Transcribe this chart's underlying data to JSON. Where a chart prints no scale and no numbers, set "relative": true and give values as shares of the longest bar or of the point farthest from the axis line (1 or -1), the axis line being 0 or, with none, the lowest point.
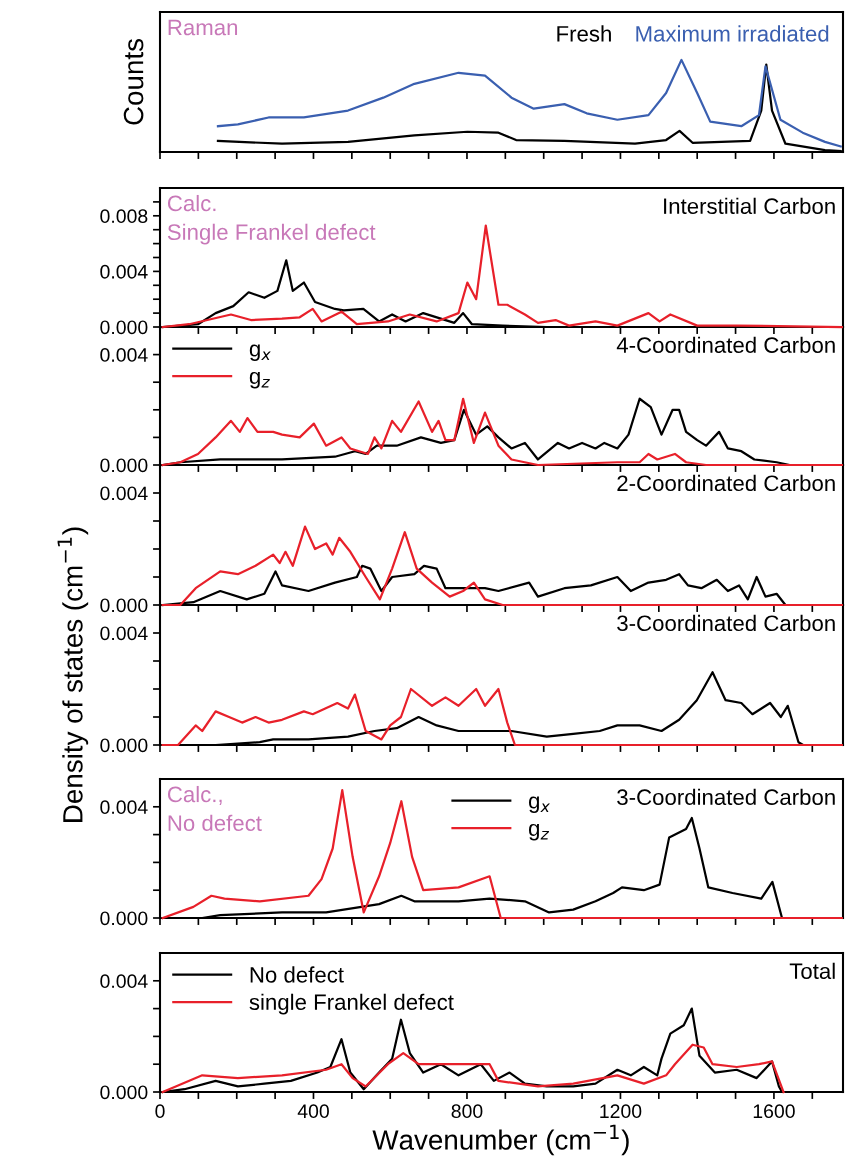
{
  "chart_data": [
    {
      "type": "line",
      "ylabel": "Counts",
      "annotations": [
        "Raman"
      ],
      "relative": true,
      "legend": "top right",
      "tick_labels": false,
      "xlim": [
        0,
        1780
      ],
      "xticks": [
        0,
        {
          "value": 100,
          "label": null
        },
        {
          "value": 200,
          "label": null
        },
        {
          "value": 300,
          "label": null
        },
        400,
        {
          "value": 500,
          "label": null
        },
        {
          "value": 600,
          "label": null
        },
        {
          "value": 700,
          "label": null
        },
        800,
        {
          "value": 900,
          "label": null
        },
        {
          "value": 1000,
          "label": null
        },
        {
          "value": 1100,
          "label": null
        },
        1200,
        {
          "value": 1300,
          "label": null
        },
        {
          "value": 1400,
          "label": null
        },
        {
          "value": 1500,
          "label": null
        },
        1600,
        {
          "value": 1700,
          "label": null
        }
      ],
      "series": [
        {
          "name": "Fresh",
          "color": "#000000",
          "x": [
            151,
            318,
            490,
            663,
            801,
            882,
            928,
            1054,
            1238,
            1319,
            1354,
            1388,
            1538,
            1567,
            1580,
            1595,
            1630,
            1733,
            1774
          ],
          "values": [
            0.12,
            0.09,
            0.11,
            0.18,
            0.22,
            0.21,
            0.13,
            0.12,
            0.09,
            0.13,
            0.23,
            0.1,
            0.12,
            0.45,
            0.95,
            0.45,
            0.09,
            0.02,
            0.01
          ]
        },
        {
          "name": "Maximum irradiated",
          "color": "#3a5fb0",
          "x": [
            151,
            203,
            283,
            375,
            490,
            582,
            663,
            778,
            847,
            916,
            974,
            1054,
            1112,
            1192,
            1273,
            1319,
            1359,
            1400,
            1434,
            1515,
            1561,
            1578,
            1617,
            1675,
            1733,
            1774
          ],
          "values": [
            0.28,
            0.3,
            0.375,
            0.375,
            0.45,
            0.59,
            0.74,
            0.86,
            0.83,
            0.59,
            0.47,
            0.52,
            0.42,
            0.35,
            0.4,
            0.64,
            1.0,
            0.64,
            0.33,
            0.28,
            0.4,
            0.93,
            0.35,
            0.21,
            0.11,
            0.06
          ]
        }
      ]
    },
    {
      "type": "line",
      "title": "Interstitial Carbon",
      "annotations": [
        "Calc.\nSingle Frankel defect"
      ],
      "tick_labels": "y",
      "xlim": [
        0,
        1780
      ],
      "xticks": [
        0,
        {
          "value": 100,
          "label": null
        },
        {
          "value": 200,
          "label": null
        },
        {
          "value": 300,
          "label": null
        },
        400,
        {
          "value": 500,
          "label": null
        },
        {
          "value": 600,
          "label": null
        },
        {
          "value": 700,
          "label": null
        },
        800,
        {
          "value": 900,
          "label": null
        },
        {
          "value": 1000,
          "label": null
        },
        {
          "value": 1100,
          "label": null
        },
        1200,
        {
          "value": 1300,
          "label": null
        },
        {
          "value": 1400,
          "label": null
        },
        {
          "value": 1500,
          "label": null
        },
        1600,
        {
          "value": 1700,
          "label": null
        }
      ],
      "ylim": [
        0,
        0.01
      ],
      "yticks": [
        {
          "value": 0,
          "label": "0.000"
        },
        {
          "value": 0.001,
          "label": null
        },
        {
          "value": 0.002,
          "label": null
        },
        {
          "value": 0.003,
          "label": null
        },
        {
          "value": 0.004,
          "label": "0.004"
        },
        {
          "value": 0.005,
          "label": null
        },
        {
          "value": 0.006,
          "label": null
        },
        {
          "value": 0.007,
          "label": null
        },
        {
          "value": 0.008,
          "label": "0.008"
        },
        {
          "value": 0.009,
          "label": null
        }
      ],
      "series": [
        {
          "color": "#000000",
          "x": [
            7,
            99,
            145,
            191,
            231,
            272,
            306,
            329,
            346,
            375,
            404,
            456,
            479,
            530,
            571,
            605,
            640,
            686,
            767,
            790,
            813,
            893,
            1008,
            1768
          ],
          "values": [
            0,
            0.0002,
            0.001,
            0.0015,
            0.0025,
            0.0021,
            0.0026,
            0.0048,
            0.0026,
            0.0032,
            0.0018,
            0.0013,
            0.0012,
            0.0013,
            0.0004,
            0.0009,
            0.0004,
            0.001,
            0.0003,
            0.001,
            0.0002,
            0.0001,
            0,
            0
          ]
        },
        {
          "color": "#e8202a",
          "x": [
            7,
            76,
            185,
            237,
            318,
            364,
            398,
            421,
            473,
            513,
            594,
            651,
            721,
            778,
            801,
            824,
            849,
            882,
            905,
            951,
            985,
            1031,
            1066,
            1135,
            1192,
            1273,
            1302,
            1330,
            1400,
            1503,
            1777
          ],
          "values": [
            0,
            0.0002,
            0.0009,
            0.0005,
            0.0006,
            0.0007,
            0.0013,
            0.0004,
            0.0011,
            0.0002,
            0.0004,
            0.0009,
            0.0004,
            0.001,
            0.0032,
            0.002,
            0.0073,
            0.0016,
            0.0016,
            0.0009,
            0.0003,
            0.0005,
            0.0001,
            0.0004,
            0.0001,
            0.001,
            0.0004,
            0.0009,
            0.0001,
            0.0001,
            0
          ]
        }
      ]
    },
    {
      "type": "line",
      "title": "4-Coordinated Carbon",
      "legend": "top left",
      "tick_labels": "y",
      "xlim": [
        0,
        1780
      ],
      "xticks": [
        0,
        {
          "value": 100,
          "label": null
        },
        {
          "value": 200,
          "label": null
        },
        {
          "value": 300,
          "label": null
        },
        400,
        {
          "value": 500,
          "label": null
        },
        {
          "value": 600,
          "label": null
        },
        {
          "value": 700,
          "label": null
        },
        800,
        {
          "value": 900,
          "label": null
        },
        {
          "value": 1000,
          "label": null
        },
        {
          "value": 1100,
          "label": null
        },
        1200,
        {
          "value": 1300,
          "label": null
        },
        {
          "value": 1400,
          "label": null
        },
        {
          "value": 1500,
          "label": null
        },
        1600,
        {
          "value": 1700,
          "label": null
        }
      ],
      "ylim": [
        0,
        0.005
      ],
      "yticks": [
        {
          "value": 0,
          "label": "0.000"
        },
        {
          "value": 0.001,
          "label": null
        },
        {
          "value": 0.002,
          "label": null
        },
        {
          "value": 0.003,
          "label": null
        },
        {
          "value": 0.004,
          "label": "0.004"
        }
      ],
      "series": [
        {
          "name": "g$_{x}$",
          "color": "#000000",
          "x": [
            7,
            53,
            157,
            203,
            318,
            456,
            508,
            536,
            565,
            617,
            680,
            732,
            767,
            792,
            824,
            853,
            882,
            916,
            951,
            985,
            1037,
            1066,
            1100,
            1135,
            1158,
            1192,
            1221,
            1250,
            1279,
            1307,
            1336,
            1353,
            1371,
            1400,
            1423,
            1457,
            1480,
            1515,
            1549,
            1607,
            1641,
            1777
          ],
          "values": [
            0,
            0.0001,
            0.0002,
            0.0002,
            0.0002,
            0.0003,
            0.0005,
            0.0004,
            0.0007,
            0.0007,
            0.001,
            0.0008,
            0.0009,
            0.002,
            0.0011,
            0.0014,
            0.001,
            0.0006,
            0.0008,
            0.0002,
            0.0008,
            0.0006,
            0.0008,
            0.0006,
            0.0008,
            0.0006,
            0.0011,
            0.0024,
            0.0021,
            0.0011,
            0.002,
            0.002,
            0.0012,
            0.0009,
            0.0007,
            0.0012,
            0.0006,
            0.0005,
            0.0002,
            0.0001,
            0,
            0
          ]
        },
        {
          "name": "g$_{z}$",
          "color": "#e8202a",
          "x": [
            7,
            53,
            99,
            145,
            185,
            208,
            228,
            254,
            295,
            318,
            364,
            401,
            433,
            473,
            496,
            542,
            559,
            577,
            605,
            628,
            674,
            709,
            726,
            744,
            767,
            790,
            818,
            847,
            882,
            916,
            985,
            1192,
            1250,
            1273,
            1296,
            1342,
            1371,
            1423,
            1777
          ],
          "values": [
            0,
            0.0001,
            0.0004,
            0.001,
            0.0016,
            0.0012,
            0.0017,
            0.0012,
            0.0012,
            0.0011,
            0.001,
            0.0015,
            0.0007,
            0.001,
            0.0006,
            0.0004,
            0.001,
            0.0006,
            0.0016,
            0.0012,
            0.0023,
            0.0012,
            0.0016,
            0.0009,
            0.0009,
            0.0024,
            0.0008,
            0.0019,
            0.0007,
            0.0002,
            0,
            0.0001,
            0.0001,
            0.0004,
            0.0002,
            0.0004,
            0.0001,
            0,
            0
          ]
        }
      ]
    },
    {
      "type": "line",
      "title": "2-Coordinated Carbon",
      "tick_labels": "y",
      "xlim": [
        0,
        1780
      ],
      "xticks": [
        0,
        {
          "value": 100,
          "label": null
        },
        {
          "value": 200,
          "label": null
        },
        {
          "value": 300,
          "label": null
        },
        400,
        {
          "value": 500,
          "label": null
        },
        {
          "value": 600,
          "label": null
        },
        {
          "value": 700,
          "label": null
        },
        800,
        {
          "value": 900,
          "label": null
        },
        {
          "value": 1000,
          "label": null
        },
        {
          "value": 1100,
          "label": null
        },
        1200,
        {
          "value": 1300,
          "label": null
        },
        {
          "value": 1400,
          "label": null
        },
        {
          "value": 1500,
          "label": null
        },
        1600,
        {
          "value": 1700,
          "label": null
        }
      ],
      "ylim": [
        0,
        0.005
      ],
      "yticks": [
        {
          "value": 0,
          "label": "0.000"
        },
        {
          "value": 0.001,
          "label": null
        },
        {
          "value": 0.002,
          "label": null
        },
        {
          "value": 0.003,
          "label": null
        },
        {
          "value": 0.004,
          "label": "0.004"
        }
      ],
      "series": [
        {
          "color": "#000000",
          "x": [
            7,
            87,
            157,
            226,
            272,
            301,
            318,
            387,
            456,
            513,
            527,
            548,
            577,
            605,
            663,
            688,
            721,
            744,
            778,
            847,
            882,
            962,
            985,
            1054,
            1123,
            1192,
            1227,
            1273,
            1319,
            1353,
            1376,
            1411,
            1451,
            1480,
            1509,
            1532,
            1555,
            1578,
            1607,
            1630,
            1777
          ],
          "values": [
            0,
            0.0001,
            0.0005,
            0.0002,
            0.0004,
            0.0012,
            0.0007,
            0.0005,
            0.0008,
            0.001,
            0.0014,
            0.0013,
            0.0005,
            0.001,
            0.0011,
            0.0014,
            0.0013,
            0.0006,
            0.0006,
            0.0006,
            0.0005,
            0.0008,
            0.0003,
            0.0006,
            0.0007,
            0.001,
            0.0005,
            0.0008,
            0.0009,
            0.0011,
            0.0007,
            0.0006,
            0.0009,
            0.0005,
            0.0007,
            0.0002,
            0.001,
            0.0003,
            0.0004,
            0,
            0
          ]
        },
        {
          "color": "#e8202a",
          "x": [
            7,
            53,
            93,
            157,
            203,
            249,
            295,
            312,
            327,
            346,
            378,
            404,
            433,
            450,
            467,
            496,
            536,
            573,
            605,
            638,
            669,
            709,
            755,
            790,
            818,
            847,
            893,
            1777
          ],
          "values": [
            0,
            0,
            0.0006,
            0.0012,
            0.0011,
            0.0014,
            0.0018,
            0.0015,
            0.0019,
            0.0014,
            0.0028,
            0.002,
            0.0022,
            0.0018,
            0.0024,
            0.0019,
            0.001,
            0.0002,
            0.0013,
            0.0026,
            0.0013,
            0.0008,
            0.0003,
            0.0005,
            0.0008,
            0.0002,
            0,
            0
          ]
        }
      ]
    },
    {
      "type": "line",
      "title": "3-Coordinated Carbon",
      "ylabel": "Density of states (cm$^{−1}$)",
      "tick_labels": "y",
      "xlim": [
        0,
        1780
      ],
      "xticks": [
        0,
        {
          "value": 100,
          "label": null
        },
        {
          "value": 200,
          "label": null
        },
        {
          "value": 300,
          "label": null
        },
        400,
        {
          "value": 500,
          "label": null
        },
        {
          "value": 600,
          "label": null
        },
        {
          "value": 700,
          "label": null
        },
        800,
        {
          "value": 900,
          "label": null
        },
        {
          "value": 1000,
          "label": null
        },
        {
          "value": 1100,
          "label": null
        },
        1200,
        {
          "value": 1300,
          "label": null
        },
        {
          "value": 1400,
          "label": null
        },
        {
          "value": 1500,
          "label": null
        },
        1600,
        {
          "value": 1700,
          "label": null
        }
      ],
      "ylim": [
        0,
        0.005
      ],
      "yticks": [
        {
          "value": 0,
          "label": "0.000"
        },
        {
          "value": 0.001,
          "label": null
        },
        {
          "value": 0.002,
          "label": null
        },
        {
          "value": 0.003,
          "label": null
        },
        {
          "value": 0.004,
          "label": "0.004"
        }
      ],
      "series": [
        {
          "color": "#000000",
          "x": [
            7,
            145,
            260,
            295,
            387,
            490,
            559,
            617,
            674,
            721,
            778,
            847,
            916,
            1008,
            1077,
            1146,
            1192,
            1250,
            1307,
            1353,
            1399,
            1440,
            1474,
            1515,
            1544,
            1590,
            1618,
            1636,
            1664,
            1676,
            1777
          ],
          "values": [
            0,
            0,
            0.0001,
            0.0002,
            0.0002,
            0.0003,
            0.0005,
            0.0006,
            0.001,
            0.0007,
            0.0005,
            0.0005,
            0.0005,
            0.0003,
            0.0004,
            0.0005,
            0.0007,
            0.0007,
            0.0005,
            0.0009,
            0.0016,
            0.0026,
            0.0016,
            0.0015,
            0.0011,
            0.0015,
            0.001,
            0.0014,
            0.0001,
            0,
            0
          ]
        },
        {
          "color": "#e8202a",
          "x": [
            7,
            47,
            93,
            110,
            145,
            180,
            214,
            249,
            283,
            318,
            375,
            398,
            462,
            490,
            508,
            536,
            577,
            600,
            628,
            654,
            709,
            744,
            778,
            824,
            847,
            882,
            905,
            925,
            1777
          ],
          "values": [
            0,
            0,
            0.0007,
            0.0005,
            0.0012,
            0.001,
            0.0008,
            0.001,
            0.0008,
            0.0009,
            0.0012,
            0.0011,
            0.0015,
            0.0013,
            0.0018,
            0.0005,
            0.0002,
            0.0007,
            0.001,
            0.002,
            0.0014,
            0.0017,
            0.0014,
            0.002,
            0.0014,
            0.002,
            0.0008,
            0,
            0
          ]
        }
      ]
    },
    {
      "type": "line",
      "title": "3-Coordinated Carbon",
      "annotations": [
        "Calc.,\nNo defect"
      ],
      "legend": "top",
      "tick_labels": "y",
      "xlim": [
        0,
        1780
      ],
      "xticks": [
        0,
        {
          "value": 100,
          "label": null
        },
        {
          "value": 200,
          "label": null
        },
        {
          "value": 300,
          "label": null
        },
        400,
        {
          "value": 500,
          "label": null
        },
        {
          "value": 600,
          "label": null
        },
        {
          "value": 700,
          "label": null
        },
        800,
        {
          "value": 900,
          "label": null
        },
        {
          "value": 1000,
          "label": null
        },
        {
          "value": 1100,
          "label": null
        },
        1200,
        {
          "value": 1300,
          "label": null
        },
        {
          "value": 1400,
          "label": null
        },
        {
          "value": 1500,
          "label": null
        },
        1600,
        {
          "value": 1700,
          "label": null
        }
      ],
      "ylim": [
        0,
        0.005
      ],
      "yticks": [
        {
          "value": 0,
          "label": "0.000"
        },
        {
          "value": 0.001,
          "label": null
        },
        {
          "value": 0.002,
          "label": null
        },
        {
          "value": 0.003,
          "label": null
        },
        {
          "value": 0.004,
          "label": "0.004"
        }
      ],
      "series": [
        {
          "name": "g$_{x}$",
          "color": "#000000",
          "x": [
            7,
            110,
            157,
            318,
            433,
            525,
            571,
            629,
            663,
            778,
            859,
            951,
            1014,
            1077,
            1135,
            1181,
            1204,
            1261,
            1302,
            1327,
            1371,
            1386,
            1406,
            1429,
            1492,
            1567,
            1596,
            1621,
            1777
          ],
          "values": [
            0,
            0,
            0.0001,
            0.0002,
            0.0002,
            0.0004,
            0.0005,
            0.0008,
            0.0006,
            0.0006,
            0.0007,
            0.0006,
            0.0002,
            0.0003,
            0.0006,
            0.0009,
            0.0011,
            0.001,
            0.0012,
            0.0029,
            0.0032,
            0.0036,
            0.0025,
            0.0011,
            0.0009,
            0.0007,
            0.0013,
            0,
            0
          ]
        },
        {
          "name": "g$_{z}$",
          "color": "#e8202a",
          "x": [
            7,
            87,
            134,
            168,
            260,
            387,
            421,
            450,
            475,
            502,
            531,
            571,
            600,
            629,
            657,
            686,
            778,
            859,
            888,
            1777
          ],
          "values": [
            0,
            0.0004,
            0.0008,
            0.0007,
            0.0006,
            0.0008,
            0.0014,
            0.0025,
            0.0046,
            0.0022,
            0.0002,
            0.0015,
            0.0027,
            0.0042,
            0.0022,
            0.001,
            0.0011,
            0.0015,
            0,
            0
          ]
        }
      ]
    },
    {
      "type": "line",
      "title": "Total",
      "xlabel": "Wavenumber (cm$^{−1}$)",
      "legend": "top left",
      "xlim": [
        0,
        1780
      ],
      "xticks": [
        0,
        {
          "value": 100,
          "label": null
        },
        {
          "value": 200,
          "label": null
        },
        {
          "value": 300,
          "label": null
        },
        400,
        {
          "value": 500,
          "label": null
        },
        {
          "value": 600,
          "label": null
        },
        {
          "value": 700,
          "label": null
        },
        800,
        {
          "value": 900,
          "label": null
        },
        {
          "value": 1000,
          "label": null
        },
        {
          "value": 1100,
          "label": null
        },
        1200,
        {
          "value": 1300,
          "label": null
        },
        {
          "value": 1400,
          "label": null
        },
        {
          "value": 1500,
          "label": null
        },
        1600,
        {
          "value": 1700,
          "label": null
        }
      ],
      "ylim": [
        0,
        0.005
      ],
      "yticks": [
        {
          "value": 0,
          "label": "0.000"
        },
        {
          "value": 0.001,
          "label": null
        },
        {
          "value": 0.002,
          "label": null
        },
        {
          "value": 0.003,
          "label": null
        },
        {
          "value": 0.004,
          "label": "0.004"
        }
      ],
      "series": [
        {
          "name": "No defect",
          "color": "#000000",
          "x": [
            7,
            64,
            145,
            203,
            272,
            341,
            410,
            444,
            473,
            496,
            531,
            571,
            605,
            628,
            651,
            686,
            732,
            778,
            836,
            870,
            911,
            951,
            1008,
            1077,
            1135,
            1192,
            1227,
            1261,
            1296,
            1307,
            1330,
            1365,
            1386,
            1406,
            1446,
            1503,
            1555,
            1595,
            1613,
            1621,
            1777
          ],
          "values": [
            0,
            0.0001,
            0.0004,
            0.0002,
            0.0003,
            0.0004,
            0.0007,
            0.0009,
            0.0019,
            0.0007,
            0.0001,
            0.0007,
            0.0012,
            0.0026,
            0.0014,
            0.0007,
            0.001,
            0.0006,
            0.001,
            0.0004,
            0.0007,
            0.0003,
            0.0002,
            0.0002,
            0.0003,
            0.0008,
            0.0006,
            0.0009,
            0.0006,
            0.0012,
            0.0021,
            0.0024,
            0.003,
            0.0013,
            0.0007,
            0.0008,
            0.0005,
            0.0011,
            0.0002,
            0,
            0
          ]
        },
        {
          "name": "single Frankel defect",
          "color": "#e8202a",
          "x": [
            7,
            41,
            110,
            203,
            318,
            433,
            473,
            502,
            536,
            594,
            634,
            674,
            755,
            859,
            882,
            985,
            1077,
            1192,
            1261,
            1319,
            1342,
            1388,
            1417,
            1440,
            1503,
            1561,
            1595,
            1625
          ],
          "values": [
            0,
            0.0002,
            0.0006,
            0.0005,
            0.0006,
            0.0008,
            0.001,
            0.0005,
            0.0002,
            0.001,
            0.0014,
            0.001,
            0.001,
            0.001,
            0.0004,
            0.0002,
            0.0003,
            0.0006,
            0.0003,
            0.0006,
            0.001,
            0.0017,
            0.0016,
            0.001,
            0.0009,
            0.001,
            0.0011,
            0
          ]
        }
      ]
    }
  ]
}
